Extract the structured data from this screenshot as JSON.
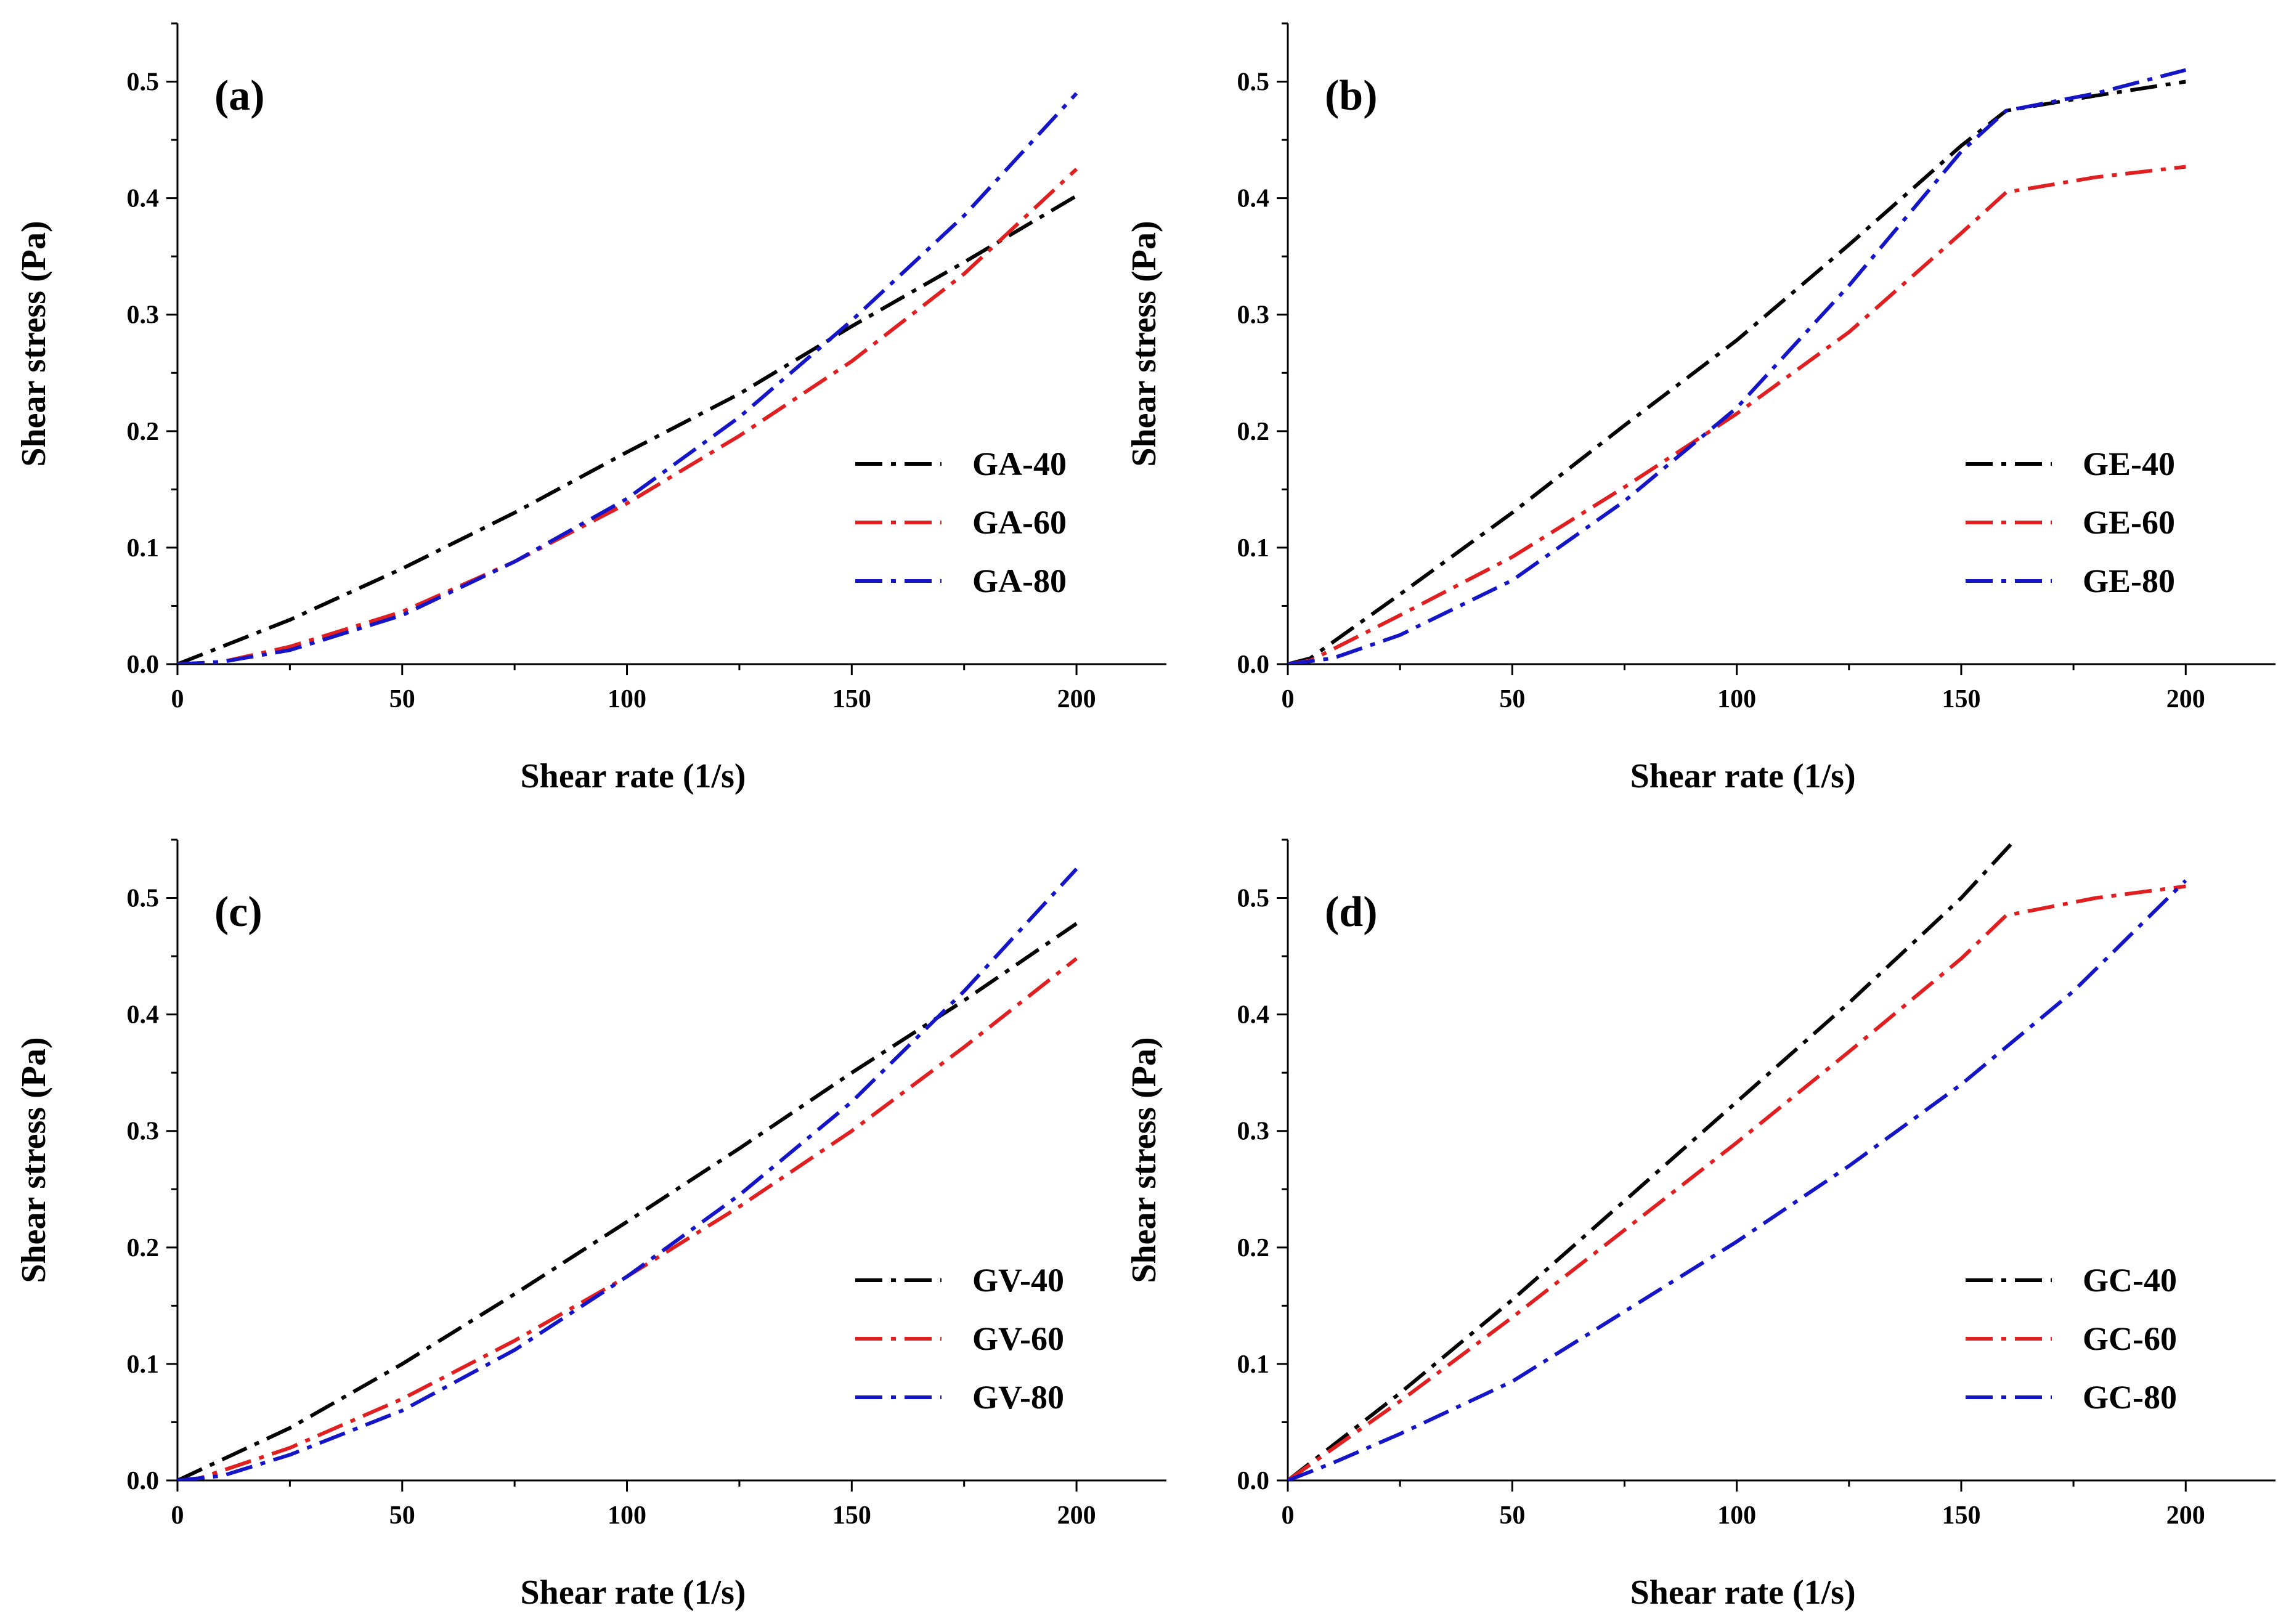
{
  "chart_data": [
    {
      "type": "line",
      "panel_label": "(a)",
      "xlabel": "Shear rate (1/s)",
      "ylabel": "Shear stress (Pa)",
      "xlim": [
        0,
        220
      ],
      "ylim": [
        0,
        0.55
      ],
      "xticks": [
        0,
        50,
        100,
        150,
        200
      ],
      "yticks": [
        0.0,
        0.1,
        0.2,
        0.3,
        0.4,
        0.5
      ],
      "xtick_labels": [
        "0",
        "50",
        "100",
        "150",
        "200"
      ],
      "ytick_labels": [
        "0.0",
        "0.1",
        "0.2",
        "0.3",
        "0.4",
        "0.5"
      ],
      "legend_position": "right",
      "series": [
        {
          "name": "GA-40",
          "color": "#000000",
          "x": [
            0,
            25,
            50,
            75,
            100,
            125,
            150,
            175,
            200
          ],
          "y": [
            0,
            0.038,
            0.082,
            0.13,
            0.182,
            0.232,
            0.29,
            0.345,
            0.402
          ]
        },
        {
          "name": "GA-60",
          "color": "#e02020",
          "x": [
            0,
            10,
            25,
            50,
            75,
            100,
            125,
            150,
            175,
            200
          ],
          "y": [
            0,
            0.002,
            0.015,
            0.045,
            0.088,
            0.138,
            0.196,
            0.26,
            0.335,
            0.425
          ]
        },
        {
          "name": "GA-80",
          "color": "#1515c8",
          "x": [
            0,
            10,
            25,
            50,
            75,
            100,
            125,
            150,
            175,
            200
          ],
          "y": [
            0,
            0.002,
            0.012,
            0.042,
            0.088,
            0.142,
            0.212,
            0.295,
            0.385,
            0.49
          ]
        }
      ]
    },
    {
      "type": "line",
      "panel_label": "(b)",
      "xlabel": "Shear rate (1/s)",
      "ylabel": "Shear stress (Pa)",
      "xlim": [
        0,
        220
      ],
      "ylim": [
        0,
        0.55
      ],
      "xticks": [
        0,
        50,
        100,
        150,
        200
      ],
      "yticks": [
        0.0,
        0.1,
        0.2,
        0.3,
        0.4,
        0.5
      ],
      "xtick_labels": [
        "0",
        "50",
        "100",
        "150",
        "200"
      ],
      "ytick_labels": [
        "0.0",
        "0.1",
        "0.2",
        "0.3",
        "0.4",
        "0.5"
      ],
      "legend_position": "right",
      "series": [
        {
          "name": "GE-40",
          "color": "#000000",
          "x": [
            0,
            5,
            25,
            50,
            75,
            100,
            125,
            150,
            160,
            180,
            200
          ],
          "y": [
            0,
            0.005,
            0.06,
            0.13,
            0.205,
            0.278,
            0.36,
            0.445,
            0.475,
            0.488,
            0.5
          ]
        },
        {
          "name": "GE-60",
          "color": "#e02020",
          "x": [
            0,
            5,
            25,
            50,
            75,
            100,
            125,
            150,
            160,
            180,
            200
          ],
          "y": [
            0,
            0.003,
            0.042,
            0.092,
            0.152,
            0.215,
            0.285,
            0.37,
            0.405,
            0.418,
            0.427
          ]
        },
        {
          "name": "GE-80",
          "color": "#1515c8",
          "x": [
            0,
            10,
            25,
            50,
            75,
            100,
            125,
            150,
            160,
            180,
            200
          ],
          "y": [
            0,
            0.005,
            0.025,
            0.072,
            0.14,
            0.22,
            0.325,
            0.44,
            0.475,
            0.49,
            0.51
          ]
        }
      ]
    },
    {
      "type": "line",
      "panel_label": "(c)",
      "xlabel": "Shear rate (1/s)",
      "ylabel": "Shear stress (Pa)",
      "xlim": [
        0,
        220
      ],
      "ylim": [
        0,
        0.55
      ],
      "xticks": [
        0,
        50,
        100,
        150,
        200
      ],
      "yticks": [
        0.0,
        0.1,
        0.2,
        0.3,
        0.4,
        0.5
      ],
      "xtick_labels": [
        "0",
        "50",
        "100",
        "150",
        "200"
      ],
      "ytick_labels": [
        "0.0",
        "0.1",
        "0.2",
        "0.3",
        "0.4",
        "0.5"
      ],
      "legend_position": "right",
      "series": [
        {
          "name": "GV-40",
          "color": "#000000",
          "x": [
            0,
            25,
            50,
            75,
            100,
            125,
            150,
            175,
            200
          ],
          "y": [
            0,
            0.045,
            0.1,
            0.16,
            0.222,
            0.285,
            0.35,
            0.412,
            0.478
          ]
        },
        {
          "name": "GV-60",
          "color": "#e02020",
          "x": [
            0,
            5,
            25,
            50,
            75,
            100,
            125,
            150,
            175,
            200
          ],
          "y": [
            0,
            0.002,
            0.028,
            0.07,
            0.12,
            0.175,
            0.235,
            0.3,
            0.372,
            0.448
          ]
        },
        {
          "name": "GV-80",
          "color": "#1515c8",
          "x": [
            0,
            10,
            25,
            50,
            75,
            100,
            125,
            150,
            175,
            200
          ],
          "y": [
            0,
            0.004,
            0.022,
            0.06,
            0.112,
            0.175,
            0.245,
            0.325,
            0.42,
            0.525
          ]
        }
      ]
    },
    {
      "type": "line",
      "panel_label": "(d)",
      "xlabel": "Shear rate (1/s)",
      "ylabel": "Shear stress (Pa)",
      "xlim": [
        0,
        220
      ],
      "ylim": [
        0,
        0.55
      ],
      "xticks": [
        0,
        50,
        100,
        150,
        200
      ],
      "yticks": [
        0.0,
        0.1,
        0.2,
        0.3,
        0.4,
        0.5
      ],
      "xtick_labels": [
        "0",
        "50",
        "100",
        "150",
        "200"
      ],
      "ytick_labels": [
        "0.0",
        "0.1",
        "0.2",
        "0.3",
        "0.4",
        "0.5"
      ],
      "legend_position": "right",
      "series": [
        {
          "name": "GC-40",
          "color": "#000000",
          "x": [
            0,
            25,
            50,
            75,
            100,
            125,
            150,
            162
          ],
          "y": [
            0,
            0.075,
            0.155,
            0.24,
            0.325,
            0.41,
            0.5,
            0.55
          ]
        },
        {
          "name": "GC-60",
          "color": "#e02020",
          "x": [
            0,
            25,
            50,
            75,
            100,
            125,
            150,
            160,
            180,
            200
          ],
          "y": [
            0,
            0.068,
            0.14,
            0.215,
            0.29,
            0.368,
            0.448,
            0.485,
            0.5,
            0.51
          ]
        },
        {
          "name": "GC-80",
          "color": "#1515c8",
          "x": [
            0,
            10,
            25,
            50,
            75,
            100,
            125,
            150,
            175,
            200
          ],
          "y": [
            0,
            0.015,
            0.04,
            0.085,
            0.145,
            0.205,
            0.27,
            0.34,
            0.42,
            0.515
          ]
        }
      ]
    }
  ]
}
